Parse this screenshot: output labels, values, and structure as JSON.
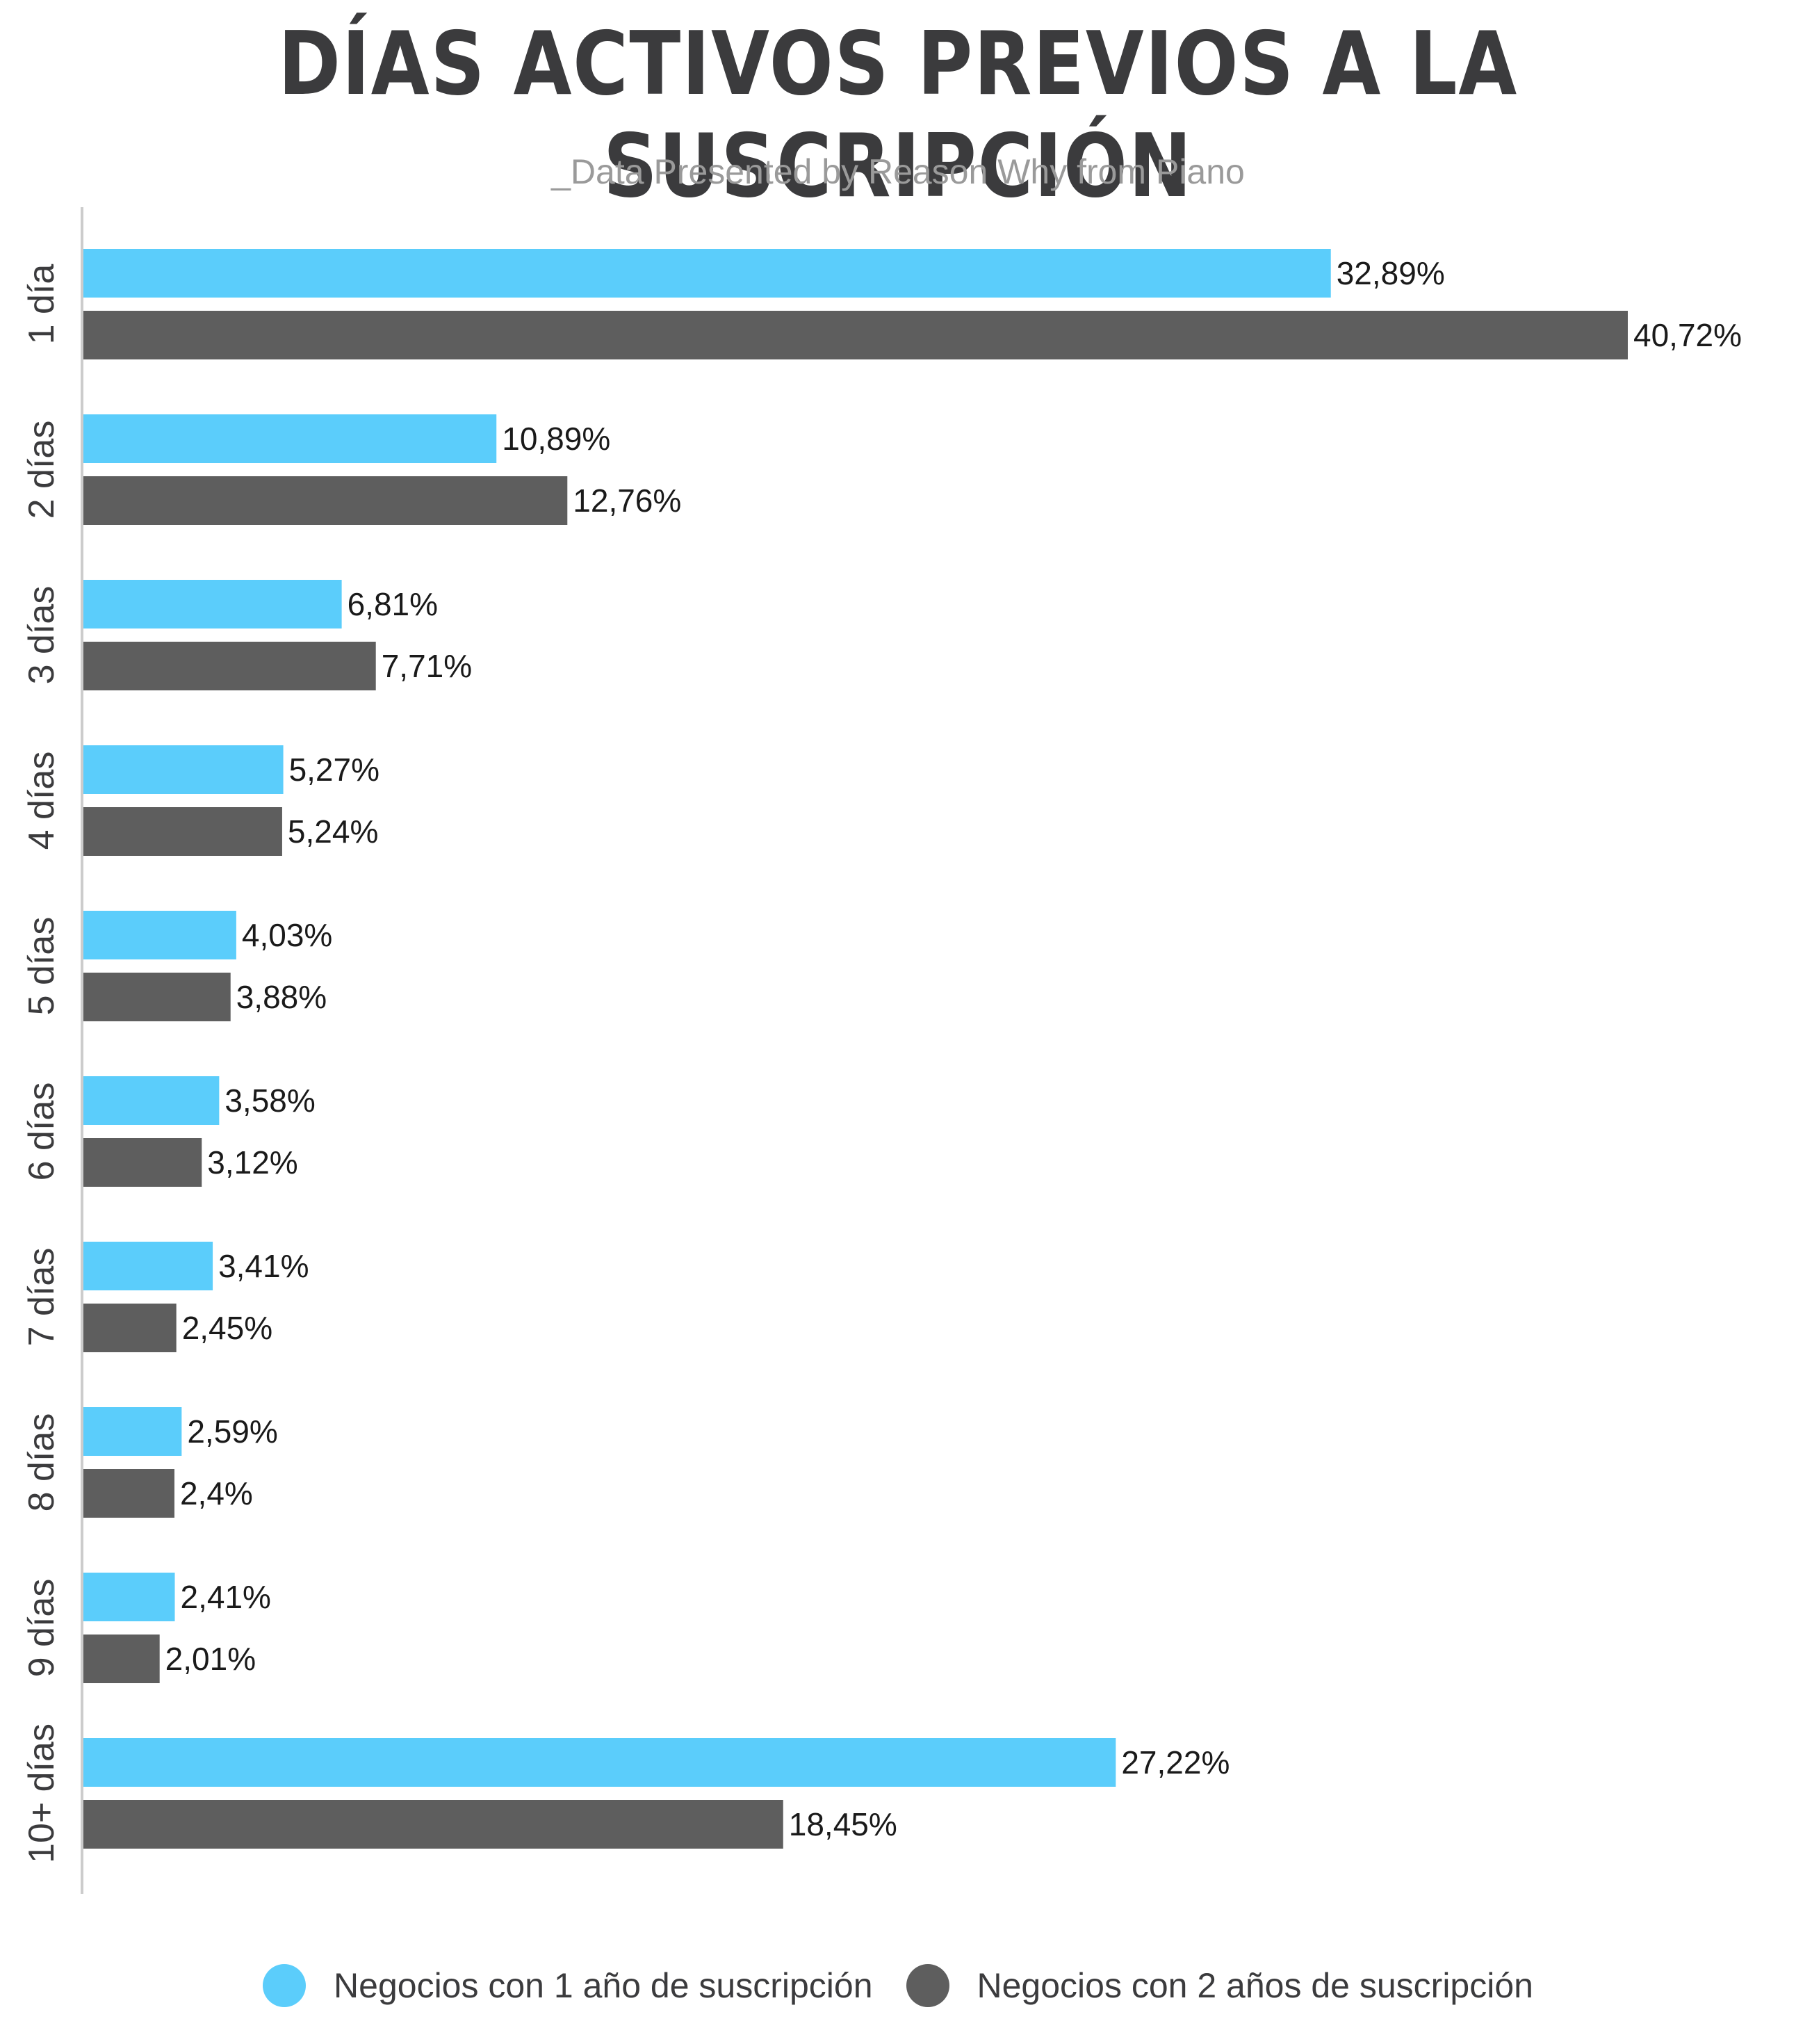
{
  "title": "DÍAS ACTIVOS PREVIOS A LA SUSCRIPCIÓN",
  "subtitle": "_Data Presented by Reason Why from Piano",
  "colors": {
    "series1": "#5bcdfb",
    "series2": "#5e5e5e",
    "axis": "#cccccc"
  },
  "chart_data": {
    "type": "bar",
    "orientation": "horizontal",
    "title": "DÍAS ACTIVOS PREVIOS A LA SUSCRIPCIÓN",
    "subtitle": "_Data Presented by Reason Why from Piano",
    "categories": [
      "1 día",
      "2 días",
      "3 días",
      "4 días",
      "5 días",
      "6 días",
      "7 días",
      "8 días",
      "9 días",
      "10+ días"
    ],
    "series": [
      {
        "name": "Negocios con 1 año de suscripción",
        "values": [
          32.89,
          10.89,
          6.81,
          5.27,
          4.03,
          3.58,
          3.41,
          2.59,
          2.41,
          27.22
        ],
        "labels": [
          "32,89%",
          "10,89%",
          "6,81%",
          "5,27%",
          "4,03%",
          "3,58%",
          "3,41%",
          "2,59%",
          "2,41%",
          "27,22%"
        ]
      },
      {
        "name": "Negocios con 2 años de suscripción",
        "values": [
          40.72,
          12.76,
          7.71,
          5.24,
          3.88,
          3.12,
          2.45,
          2.4,
          2.01,
          18.45
        ],
        "labels": [
          "40,72%",
          "12,76%",
          "7,71%",
          "5,24%",
          "3,88%",
          "3,12%",
          "2,45%",
          "2,4%",
          "2,01%",
          "18,45%"
        ]
      }
    ],
    "xlim": [
      0,
      40.72
    ],
    "grid": false,
    "legend_position": "bottom"
  },
  "legend": {
    "series1": "Negocios con 1 año de suscripción",
    "series2": "Negocios con 2 años de suscripción"
  }
}
